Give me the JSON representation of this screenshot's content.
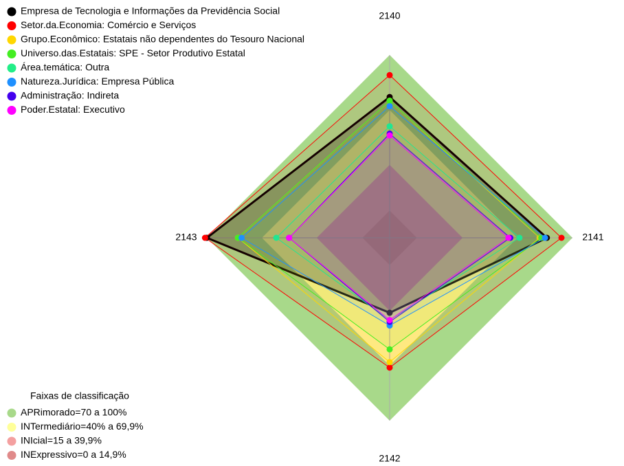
{
  "chart_data": {
    "type": "radar",
    "categories": [
      "2140",
      "2141",
      "2142",
      "2143"
    ],
    "rlim": [
      0,
      100
    ],
    "series": [
      {
        "name": "Empresa de Tecnologia e Informações da Previdência Social",
        "color": "#000000",
        "values": [
          77,
          86,
          41,
          100
        ]
      },
      {
        "name": "Setor.da.Economia: Comércio e Serviços",
        "color": "#ff0000",
        "values": [
          89,
          94,
          71,
          101
        ]
      },
      {
        "name": "Grupo.Econômico: Estatais não dependentes do Tesouro Nacional",
        "color": "#ffd700",
        "values": [
          75,
          82,
          68,
          83
        ]
      },
      {
        "name": "Universo.das.Estatais: SPE - Setor Produtivo Estatal",
        "color": "#44ee22",
        "values": [
          75,
          83,
          61,
          83
        ]
      },
      {
        "name": "Área.temática: Outra",
        "color": "#22ee88",
        "values": [
          61,
          71,
          45,
          62
        ]
      },
      {
        "name": "Natureza.Jurídica: Empresa Pública",
        "color": "#1e90ff",
        "values": [
          72,
          85,
          48,
          81
        ]
      },
      {
        "name": "Administração: Indireta",
        "color": "#4400ee",
        "values": [
          57,
          66,
          46,
          55
        ]
      },
      {
        "name": "Poder.Estatal: Executivo",
        "color": "#ff00ff",
        "values": [
          56,
          65,
          45,
          55
        ]
      }
    ],
    "bands_title": "Faixas de classificação",
    "bands": [
      {
        "name": "APRimorado=70 a 100%",
        "color": "#a8d98a",
        "range": [
          70,
          100
        ]
      },
      {
        "name": "INTermediário=40% a 69,9%",
        "color": "#ffff99",
        "range": [
          40,
          69.9
        ]
      },
      {
        "name": "INIcial=15 a 39,9%",
        "color": "#f4a0a0",
        "range": [
          15,
          39.9
        ]
      },
      {
        "name": "INExpressivo=0 a 14,9%",
        "color": "#e08a8a",
        "range": [
          0,
          14.9
        ]
      }
    ]
  }
}
